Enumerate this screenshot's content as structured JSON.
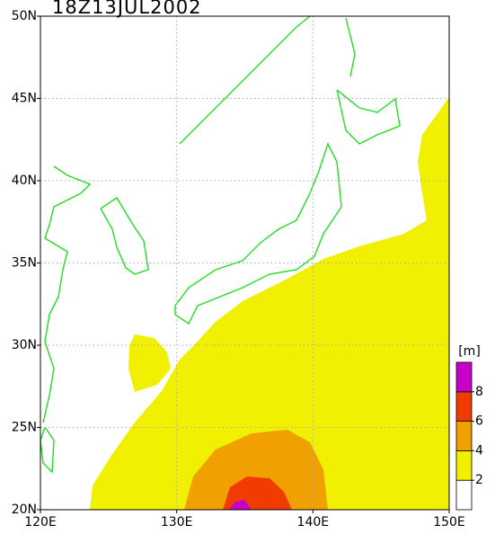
{
  "title": "18Z13JUL2002",
  "x_axis": {
    "lim": [
      120,
      150
    ],
    "ticks": [
      {
        "value": 120,
        "label": "120E"
      },
      {
        "value": 130,
        "label": "130E"
      },
      {
        "value": 140,
        "label": "140E"
      },
      {
        "value": 150,
        "label": "150E"
      }
    ]
  },
  "y_axis": {
    "lim": [
      20,
      50
    ],
    "ticks": [
      {
        "value": 20,
        "label": "20N"
      },
      {
        "value": 25,
        "label": "25N"
      },
      {
        "value": 30,
        "label": "30N"
      },
      {
        "value": 35,
        "label": "35N"
      },
      {
        "value": 40,
        "label": "40N"
      },
      {
        "value": 45,
        "label": "45N"
      },
      {
        "value": 50,
        "label": "50N"
      }
    ]
  },
  "grid": true,
  "colorbar": {
    "unit": "[m]",
    "ticks": [
      2,
      4,
      6,
      8
    ],
    "colors": [
      "#ffffff",
      "#f0f000",
      "#f0a000",
      "#f03c00",
      "#c800c8"
    ]
  }
}
